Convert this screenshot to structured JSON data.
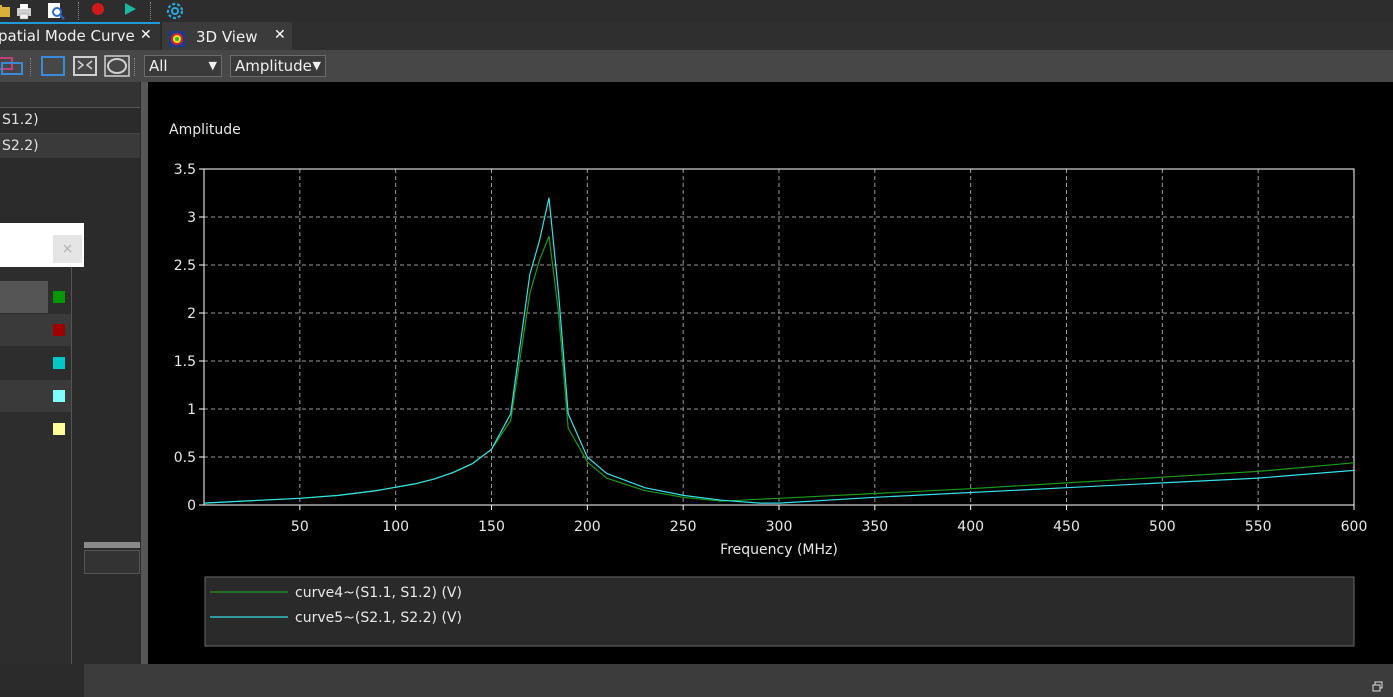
{
  "tabs": [
    {
      "label": "patial Mode Curve",
      "active": true
    },
    {
      "label": "3D View",
      "active": false
    }
  ],
  "toolbar": {
    "icons": [
      "folder-icon",
      "print-icon",
      "print-preview-icon",
      "record-icon",
      "play-icon",
      "settings-gear-icon"
    ],
    "colors": {
      "record": "#d01a1a",
      "play": "#19b8a0",
      "gear": "#2aa8e0"
    }
  },
  "subbar": {
    "filter_select": {
      "value": "All"
    },
    "type_select": {
      "value": "Amplitude"
    }
  },
  "left_panel": {
    "list_items": [
      "S1.2)",
      "S2.2)"
    ],
    "dialog_close": "×",
    "color_swatches": [
      "#009900",
      "#a00000",
      "#00c8c8",
      "#80ffff",
      "#ffff99"
    ]
  },
  "chart_data": {
    "type": "line",
    "title": "",
    "ylabel": "Amplitude",
    "xlabel": "Frequency (MHz)",
    "xlim": [
      0,
      600
    ],
    "ylim": [
      0,
      3.5
    ],
    "xticks": [
      50,
      100,
      150,
      200,
      250,
      300,
      350,
      400,
      450,
      500,
      550,
      600
    ],
    "yticks": [
      0,
      0.5,
      1,
      1.5,
      2,
      2.5,
      3,
      3.5
    ],
    "grid": true,
    "legend_position": "bottom",
    "series": [
      {
        "name": "curve4~(S1.1, S1.2) (V)",
        "color": "#1a9a1a",
        "x": [
          0,
          10,
          30,
          50,
          70,
          90,
          110,
          120,
          130,
          140,
          150,
          160,
          170,
          175,
          180,
          185,
          190,
          200,
          210,
          230,
          250,
          270,
          290,
          300,
          350,
          400,
          450,
          500,
          550,
          600
        ],
        "y": [
          0.02,
          0.03,
          0.05,
          0.07,
          0.1,
          0.15,
          0.22,
          0.27,
          0.34,
          0.43,
          0.58,
          0.88,
          2.2,
          2.55,
          2.8,
          2.0,
          0.8,
          0.45,
          0.28,
          0.15,
          0.08,
          0.04,
          0.06,
          0.07,
          0.12,
          0.17,
          0.23,
          0.29,
          0.35,
          0.44
        ]
      },
      {
        "name": "curve5~(S2.1, S2.2) (V)",
        "color": "#36e0e8",
        "x": [
          0,
          10,
          30,
          50,
          70,
          90,
          110,
          120,
          130,
          140,
          150,
          160,
          170,
          175,
          180,
          185,
          190,
          200,
          210,
          230,
          250,
          270,
          290,
          300,
          350,
          400,
          450,
          500,
          550,
          600
        ],
        "y": [
          0.02,
          0.03,
          0.05,
          0.07,
          0.1,
          0.15,
          0.22,
          0.27,
          0.34,
          0.43,
          0.58,
          0.95,
          2.4,
          2.75,
          3.2,
          2.2,
          0.95,
          0.5,
          0.33,
          0.18,
          0.1,
          0.05,
          0.02,
          0.02,
          0.08,
          0.13,
          0.18,
          0.23,
          0.28,
          0.36
        ]
      }
    ]
  },
  "window": {
    "restore_icon": "restore-icon"
  }
}
